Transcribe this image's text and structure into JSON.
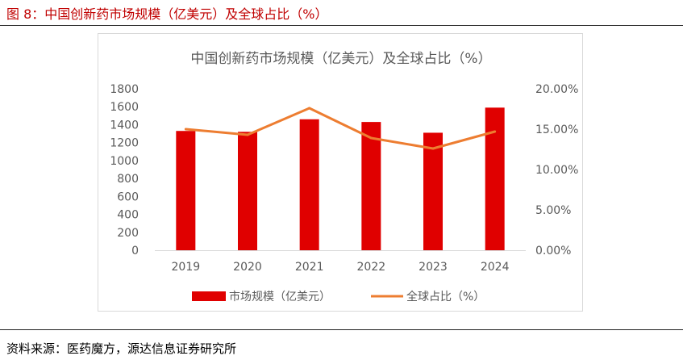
{
  "figure": {
    "title": "图 8：中国创新药市场规模（亿美元）及全球占比（%）",
    "source": "资料来源：医药魔方，源达信息证券研究所"
  },
  "colors": {
    "bar": "#e00000",
    "line": "#ed7d31",
    "title_red": "#c00000"
  },
  "chart_data": {
    "type": "bar",
    "title": "中国创新药市场规模（亿美元）及全球占比（%）",
    "categories": [
      "2019",
      "2020",
      "2021",
      "2022",
      "2023",
      "2024"
    ],
    "series": [
      {
        "name": "市场规模（亿美元）",
        "type": "bar",
        "axis": "left",
        "values": [
          1330,
          1320,
          1460,
          1430,
          1310,
          1590
        ]
      },
      {
        "name": "全球占比（%）",
        "type": "line",
        "axis": "right",
        "values": [
          15.0,
          14.3,
          17.6,
          13.9,
          12.6,
          14.7
        ]
      }
    ],
    "left_axis": {
      "min": 0,
      "max": 1800,
      "ticks": [
        "0",
        "200",
        "400",
        "600",
        "800",
        "1000",
        "1200",
        "1400",
        "1600",
        "1800"
      ]
    },
    "right_axis": {
      "min": 0,
      "max": 20,
      "ticks": [
        "0.00%",
        "5.00%",
        "10.00%",
        "15.00%",
        "20.00%"
      ]
    },
    "legend_position": "bottom",
    "grid": false
  }
}
